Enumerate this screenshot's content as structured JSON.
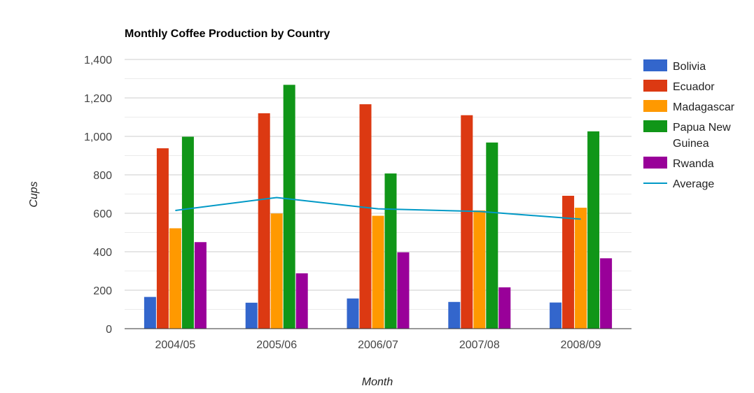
{
  "chart_data": {
    "type": "bar",
    "title": "Monthly Coffee Production by Country",
    "xlabel": "Month",
    "ylabel": "Cups",
    "ylim": [
      0,
      1400
    ],
    "yticks": [
      "0",
      "200",
      "400",
      "600",
      "800",
      "1,000",
      "1,200",
      "1,400"
    ],
    "ytick_values": [
      0,
      200,
      400,
      600,
      800,
      1000,
      1200,
      1400
    ],
    "categories": [
      "2004/05",
      "2005/06",
      "2006/07",
      "2007/08",
      "2008/09"
    ],
    "series": [
      {
        "name": "Bolivia",
        "color": "#3366cc",
        "values": [
          165,
          135,
          157,
          139,
          136
        ]
      },
      {
        "name": "Ecuador",
        "color": "#dc3912",
        "values": [
          938,
          1120,
          1167,
          1110,
          691
        ]
      },
      {
        "name": "Madagascar",
        "color": "#ff9900",
        "values": [
          522,
          599,
          587,
          615,
          629
        ]
      },
      {
        "name": "Papua New Guinea",
        "color": "#109618",
        "values": [
          998,
          1268,
          807,
          968,
          1026
        ]
      },
      {
        "name": "Rwanda",
        "color": "#990099",
        "values": [
          450,
          288,
          397,
          215,
          366
        ]
      }
    ],
    "line_series": {
      "name": "Average",
      "color": "#0099c6",
      "values": [
        614.6,
        682,
        623,
        609.4,
        569.6
      ]
    },
    "grid": true,
    "legend_position": "right"
  }
}
